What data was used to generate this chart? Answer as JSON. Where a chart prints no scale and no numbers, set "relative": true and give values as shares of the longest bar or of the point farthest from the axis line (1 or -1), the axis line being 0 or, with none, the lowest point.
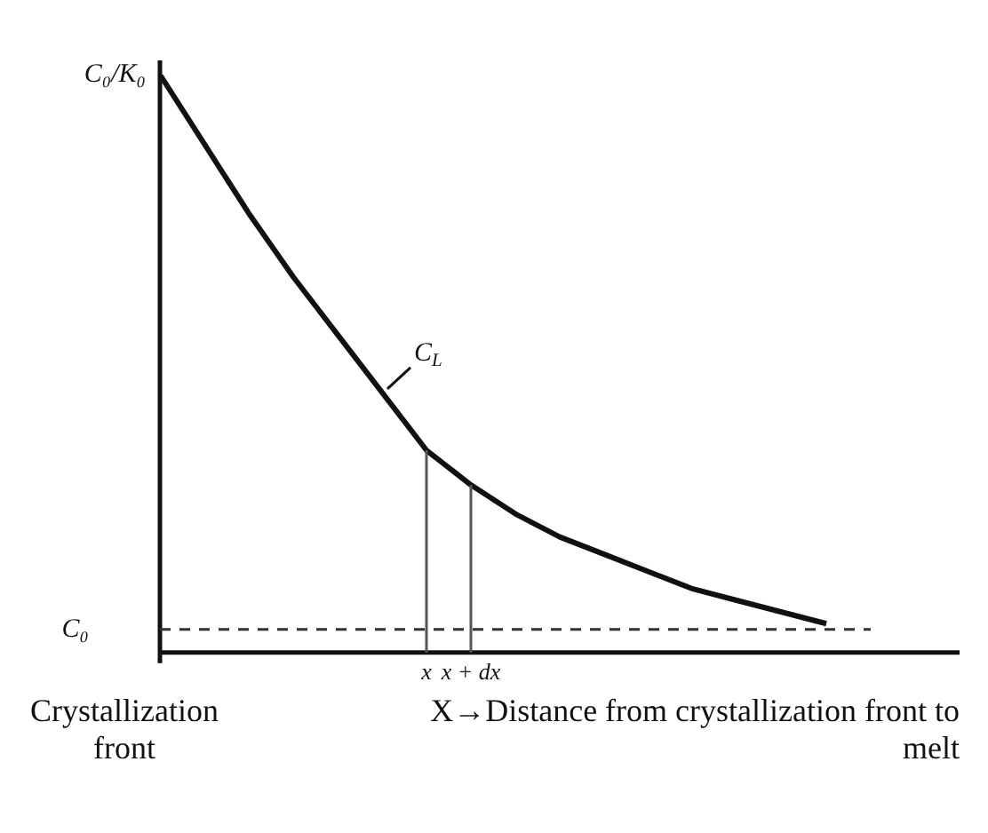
{
  "chart_data": {
    "type": "line",
    "relative": true,
    "xlabel": "X→Distance from crystallization front to melt",
    "tick_labels": "x",
    "grid": false,
    "legend": false,
    "marker": "none",
    "categories": [
      null,
      null,
      null,
      null,
      null,
      null,
      "x",
      "x + dx",
      null,
      null,
      null,
      null,
      null,
      null,
      null,
      null,
      null,
      null,
      null
    ],
    "series": [
      {
        "color": "#111111",
        "values": [
          1,
          0.88,
          0.76,
          0.65,
          0.55,
          0.45,
          0.35,
          0.29,
          0.24,
          0.2,
          0.17,
          0.14,
          0.11,
          0.09,
          0.07,
          0.05,
          null,
          null,
          null
        ]
      }
    ],
    "ref_lines": [
      {
        "axis": "y",
        "value": 0.04,
        "label": "C₀",
        "line_style": "dashed",
        "color": "#333333"
      },
      {
        "axis": "x",
        "value": "x",
        "color": "#555555"
      },
      {
        "axis": "x",
        "value": "x + dx",
        "color": "#555555"
      }
    ],
    "annotations": [
      "C₀/K₀",
      "C$_{L}$",
      "Crystallization front"
    ]
  }
}
